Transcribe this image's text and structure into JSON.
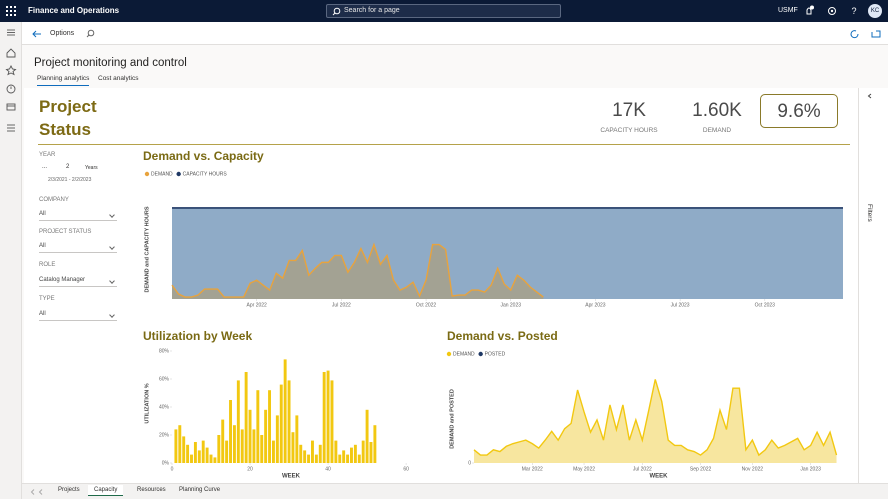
{
  "ui": {
    "app_name": "Finance and Operations",
    "search_placeholder": "Search for a page",
    "company": "USMF",
    "avatar": "KC",
    "breadcrumb": "Options",
    "page_title": "Project monitoring and control",
    "tabs": [
      "Planning analytics",
      "Cost analytics"
    ],
    "report_title": "Project Status",
    "kpis": [
      {
        "value": "17K",
        "label": "CAPACITY HOURS"
      },
      {
        "value": "1.60K",
        "label": "DEMAND"
      },
      {
        "value": "9.6%"
      }
    ],
    "filters_pane": "Filters",
    "year_slicer": {
      "label": "YEAR",
      "period": "...",
      "count": "2",
      "unit": "Years",
      "range": "2/3/2021 - 2/2/2023"
    },
    "dropdowns": [
      {
        "label": "COMPANY",
        "value": "All"
      },
      {
        "label": "PROJECT STATUS",
        "value": "All"
      },
      {
        "label": "ROLE",
        "value": "Catalog Manager"
      },
      {
        "label": "TYPE",
        "value": "All"
      }
    ],
    "bottom_tabs": [
      "Projects",
      "Capacity",
      "Resources",
      "Planning Curve"
    ]
  },
  "chart_data": [
    {
      "type": "area",
      "title": "Demand vs. Capacity",
      "ylabel": "DEMAND and CAPACITY HOURS",
      "xlim": [
        0,
        103
      ],
      "ylim": [
        0,
        100
      ],
      "xticks": [
        {
          "value": 13,
          "label": "Apr 2022"
        },
        {
          "value": 26,
          "label": "Jul 2022"
        },
        {
          "value": 39,
          "label": "Oct 2022"
        },
        {
          "value": 52,
          "label": "Jan 2023"
        },
        {
          "value": 65,
          "label": "Apr 2023"
        },
        {
          "value": 78,
          "label": "Jul 2023"
        },
        {
          "value": 91,
          "label": "Oct 2023"
        }
      ],
      "series": [
        {
          "name": "DEMAND",
          "color": "#e8a33d",
          "x": [
            0,
            1,
            2,
            3,
            4,
            5,
            6,
            7,
            8,
            9,
            10,
            11,
            12,
            13,
            14,
            15,
            16,
            17,
            18,
            19,
            20,
            21,
            22,
            23,
            24,
            25,
            26,
            27,
            28,
            29,
            30,
            31,
            32,
            33,
            34,
            35,
            36,
            37,
            38,
            39,
            40,
            41,
            42,
            43,
            44,
            45,
            46,
            47,
            48,
            49,
            50,
            51,
            52,
            53,
            54,
            55,
            56,
            57
          ],
          "values": [
            14,
            5,
            2,
            2,
            4,
            10,
            10,
            10,
            2,
            2,
            2,
            2,
            16,
            19,
            14,
            9,
            26,
            21,
            39,
            39,
            49,
            24,
            31,
            37,
            37,
            44,
            44,
            27,
            37,
            51,
            37,
            55,
            35,
            44,
            19,
            9,
            12,
            17,
            3,
            19,
            55,
            55,
            50,
            3,
            4,
            4,
            9,
            9,
            7,
            14,
            31,
            15,
            9,
            24,
            19,
            12,
            7,
            2
          ]
        },
        {
          "name": "CAPACITY HOURS",
          "color": "#1f3864",
          "x": [
            0,
            103
          ],
          "values": [
            92,
            92
          ]
        }
      ]
    },
    {
      "type": "bar",
      "title": "Utilization by Week",
      "ylabel": "UTILIZATION %",
      "xlabel": "WEEK",
      "color": "#f2c811",
      "xlim": [
        0,
        61
      ],
      "ylim": [
        0,
        85
      ],
      "xticks": [
        0,
        20,
        40,
        60
      ],
      "yticks": [
        {
          "value": 0,
          "label": "0%"
        },
        {
          "value": 20,
          "label": "20%"
        },
        {
          "value": 40,
          "label": "40%"
        },
        {
          "value": 60,
          "label": "60%"
        },
        {
          "value": 80,
          "label": "80%"
        }
      ],
      "x": [
        1,
        2,
        3,
        4,
        5,
        6,
        7,
        8,
        9,
        10,
        11,
        12,
        13,
        14,
        15,
        16,
        17,
        18,
        19,
        20,
        21,
        22,
        23,
        24,
        25,
        26,
        27,
        28,
        29,
        30,
        31,
        32,
        33,
        34,
        35,
        36,
        37,
        38,
        39,
        40,
        41,
        42,
        43,
        44,
        45,
        46,
        47,
        48,
        49,
        50,
        51,
        52
      ],
      "values": [
        24,
        27,
        19,
        13,
        6,
        15,
        9,
        16,
        11,
        6,
        4,
        20,
        31,
        16,
        45,
        27,
        59,
        24,
        65,
        38,
        24,
        52,
        20,
        38,
        52,
        16,
        34,
        56,
        74,
        59,
        22,
        34,
        13,
        9,
        6,
        16,
        6,
        13,
        65,
        66,
        59,
        16,
        6,
        9,
        6,
        11,
        13,
        6,
        16,
        38,
        15,
        27
      ]
    },
    {
      "type": "area",
      "title": "Demand vs. Posted",
      "ylabel": "DEMAND and POSTED",
      "xlabel": "WEEK",
      "xlim": [
        0,
        57
      ],
      "ylim": [
        0,
        100
      ],
      "yticks": [
        0
      ],
      "xticks": [
        {
          "value": 9,
          "label": "Mar 2022"
        },
        {
          "value": 17,
          "label": "May 2022"
        },
        {
          "value": 26,
          "label": "Jul 2022"
        },
        {
          "value": 35,
          "label": "Sep 2022"
        },
        {
          "value": 43,
          "label": "Nov 2022"
        },
        {
          "value": 52,
          "label": "Jan 2023"
        }
      ],
      "series": [
        {
          "name": "DEMAND",
          "color": "#f2c811",
          "x": [
            0,
            1,
            2,
            3,
            4,
            5,
            6,
            7,
            8,
            9,
            10,
            11,
            12,
            13,
            14,
            15,
            16,
            17,
            18,
            19,
            20,
            21,
            22,
            23,
            24,
            25,
            26,
            27,
            28,
            29,
            30,
            31,
            32,
            33,
            34,
            35,
            36,
            37,
            38,
            39,
            40,
            41,
            42,
            43,
            44,
            45,
            46,
            47,
            48,
            49,
            50,
            51,
            52,
            53,
            54,
            55,
            56
          ],
          "values": [
            15,
            9,
            9,
            15,
            13,
            19,
            22,
            24,
            26,
            22,
            17,
            26,
            36,
            26,
            39,
            45,
            83,
            58,
            35,
            49,
            26,
            66,
            38,
            66,
            26,
            49,
            26,
            60,
            95,
            70,
            26,
            20,
            20,
            15,
            13,
            9,
            15,
            28,
            60,
            38,
            85,
            85,
            15,
            26,
            9,
            15,
            26,
            17,
            20,
            24,
            28,
            15,
            20,
            35,
            20,
            35,
            9
          ]
        },
        {
          "name": "POSTED",
          "color": "#1f3864",
          "x": [],
          "values": []
        }
      ]
    }
  ]
}
